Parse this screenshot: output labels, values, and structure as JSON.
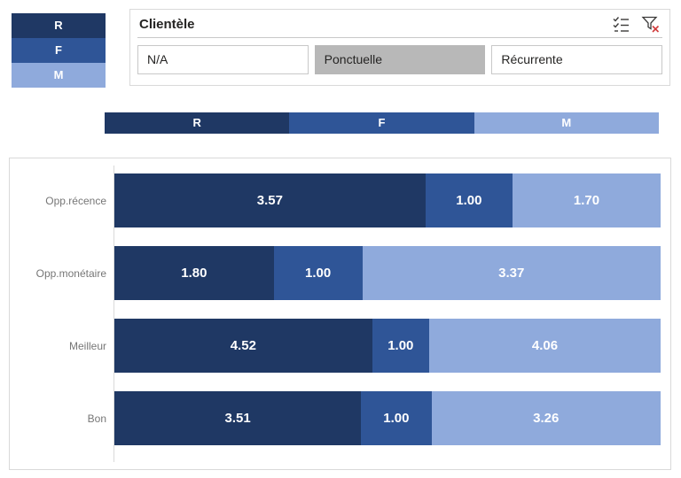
{
  "colors": {
    "r": "#1F3864",
    "f": "#2F5597",
    "m": "#8FAADC",
    "selected": "#B8B8B8",
    "panel_border": "#D9D9D9",
    "clear_filter_x": "#D03A3A",
    "icon_gray": "#3B3A39"
  },
  "legend_box": {
    "items": [
      {
        "label": "R",
        "color_key": "r"
      },
      {
        "label": "F",
        "color_key": "f"
      },
      {
        "label": "M",
        "color_key": "m"
      }
    ]
  },
  "slicer": {
    "title": "Clientèle",
    "icons": [
      "multi-select-icon",
      "clear-filter-icon"
    ],
    "options": [
      {
        "label": "N/A",
        "selected": false
      },
      {
        "label": "Ponctuelle",
        "selected": true
      },
      {
        "label": "Récurrente",
        "selected": false
      }
    ]
  },
  "legend_bar": {
    "items": [
      {
        "label": "R",
        "color_key": "r"
      },
      {
        "label": "F",
        "color_key": "f"
      },
      {
        "label": "M",
        "color_key": "m"
      }
    ]
  },
  "chart_data": {
    "type": "bar",
    "subtype": "horizontal-100%-stacked",
    "orientation": "horizontal",
    "categories": [
      "Opp.récence",
      "Opp.monétaire",
      "Meilleur",
      "Bon"
    ],
    "series": [
      {
        "name": "R",
        "color_key": "r",
        "values": [
          3.57,
          1.8,
          4.52,
          3.51
        ]
      },
      {
        "name": "F",
        "color_key": "f",
        "values": [
          1.0,
          1.0,
          1.0,
          1.0
        ]
      },
      {
        "name": "M",
        "color_key": "m",
        "values": [
          1.7,
          3.37,
          4.06,
          3.26
        ]
      }
    ],
    "data_labels": true,
    "label_decimals": 2,
    "legend_position": "top",
    "grid": false
  }
}
